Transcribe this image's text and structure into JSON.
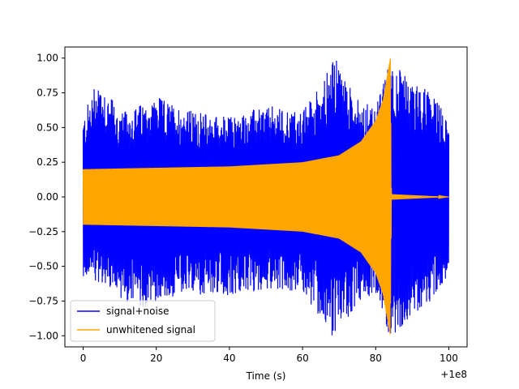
{
  "chart_data": {
    "type": "line",
    "xlabel": "Time (s)",
    "ylabel": "",
    "xlim": [
      -5,
      105
    ],
    "ylim": [
      -1.08,
      1.08
    ],
    "x_offset_label": "+1e8",
    "x_ticks": [
      0,
      20,
      40,
      60,
      80,
      100
    ],
    "x_tick_labels": [
      "0",
      "20",
      "40",
      "60",
      "80",
      "100"
    ],
    "y_ticks": [
      -1.0,
      -0.75,
      -0.5,
      -0.25,
      0.0,
      0.25,
      0.5,
      0.75,
      1.0
    ],
    "y_tick_labels": [
      "−1.00",
      "−0.75",
      "−0.50",
      "−0.25",
      "0.00",
      "0.25",
      "0.50",
      "0.75",
      "1.00"
    ],
    "grid": false,
    "legend_position": "lower-left",
    "series": [
      {
        "name": "signal+noise",
        "color": "#0000ff",
        "x_range": [
          0,
          100
        ],
        "upper_envelope": [
          [
            0,
            0.57
          ],
          [
            4,
            0.89
          ],
          [
            10,
            0.6
          ],
          [
            20,
            0.72
          ],
          [
            30,
            0.62
          ],
          [
            40,
            0.58
          ],
          [
            50,
            0.66
          ],
          [
            60,
            0.62
          ],
          [
            69,
            1.0
          ],
          [
            75,
            0.7
          ],
          [
            80,
            0.64
          ],
          [
            84,
            1.0
          ],
          [
            90,
            0.82
          ],
          [
            95,
            0.78
          ],
          [
            100,
            0.55
          ]
        ],
        "lower_envelope": [
          [
            0,
            -0.57
          ],
          [
            5,
            -0.62
          ],
          [
            15,
            -0.82
          ],
          [
            20,
            -0.75
          ],
          [
            30,
            -0.7
          ],
          [
            40,
            -0.72
          ],
          [
            50,
            -0.66
          ],
          [
            60,
            -0.68
          ],
          [
            69,
            -1.04
          ],
          [
            75,
            -0.75
          ],
          [
            80,
            -0.72
          ],
          [
            84,
            -1.01
          ],
          [
            90,
            -0.86
          ],
          [
            95,
            -0.75
          ],
          [
            100,
            -0.55
          ]
        ]
      },
      {
        "name": "unwhitened signal",
        "color": "#ffa500",
        "x_range": [
          0,
          100
        ],
        "amplitude_envelope": [
          [
            0,
            0.2
          ],
          [
            20,
            0.21
          ],
          [
            40,
            0.22
          ],
          [
            60,
            0.25
          ],
          [
            70,
            0.3
          ],
          [
            76,
            0.4
          ],
          [
            80,
            0.55
          ],
          [
            82,
            0.7
          ],
          [
            84,
            1.0
          ],
          [
            84.3,
            0.02
          ],
          [
            100,
            0.0
          ]
        ]
      }
    ]
  }
}
